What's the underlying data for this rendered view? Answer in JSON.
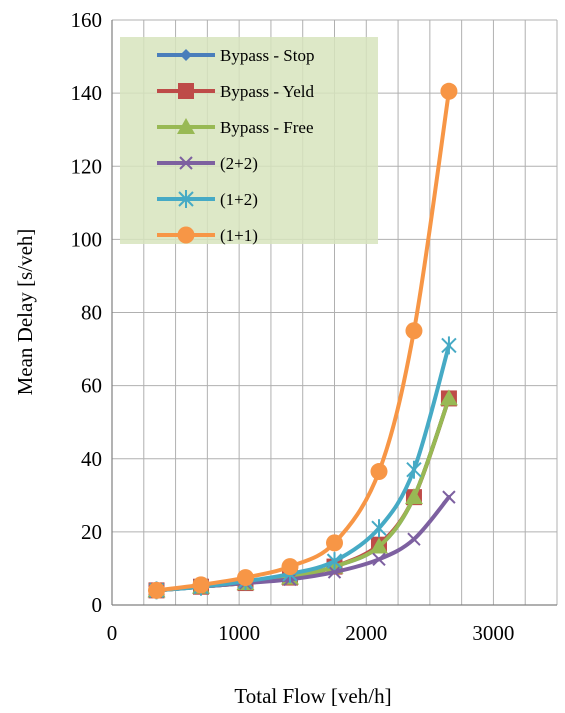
{
  "chart_data": {
    "type": "line",
    "title": "",
    "xlabel": "Total Flow [veh/h]",
    "ylabel": "Mean Delay [s/veh]",
    "xlim": [
      0,
      3500
    ],
    "ylim": [
      0,
      160
    ],
    "x_major_ticks": [
      0,
      1000,
      2000,
      3000
    ],
    "y_major_ticks": [
      0,
      20,
      40,
      60,
      80,
      100,
      120,
      140,
      160
    ],
    "x_minor_step": 250,
    "grid": true,
    "smooth": true,
    "legend_position": "top-left",
    "legend_background": "#d7e4bd",
    "x": [
      350,
      700,
      1050,
      1400,
      1750,
      2100,
      2375,
      2650
    ],
    "series": [
      {
        "name": "Bypass - Stop",
        "color": "#4a7ebb",
        "marker": "diamond",
        "values": [
          4,
          5,
          6,
          7.5,
          10.5,
          16,
          29.5,
          56.5
        ]
      },
      {
        "name": "Bypass - Yeld",
        "color": "#be4b48",
        "marker": "square",
        "values": [
          4,
          5,
          6,
          7.5,
          10.5,
          16.5,
          29.5,
          56.5
        ]
      },
      {
        "name": "Bypass - Free",
        "color": "#98b954",
        "marker": "triangle",
        "values": [
          4,
          5,
          6,
          7.5,
          10.5,
          16,
          29.5,
          56.5
        ]
      },
      {
        "name": "(2+2)",
        "color": "#7d60a0",
        "marker": "x",
        "values": [
          4,
          5,
          6,
          7,
          9,
          12.5,
          18,
          29.5
        ]
      },
      {
        "name": "(1+2)",
        "color": "#46aac5",
        "marker": "star",
        "values": [
          4,
          5,
          6.5,
          8.5,
          12,
          21,
          37,
          71
        ]
      },
      {
        "name": "(1+1)",
        "color": "#f79646",
        "marker": "circle",
        "values": [
          4,
          5.5,
          7.5,
          10.5,
          17,
          36.5,
          75,
          140.5
        ]
      }
    ]
  }
}
